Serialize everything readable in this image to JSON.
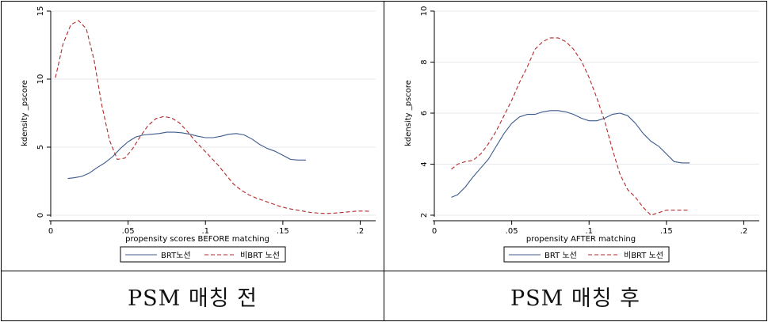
{
  "captions": [
    "PSM 매칭 전",
    "PSM 매칭 후"
  ],
  "colors": {
    "brt": "#3c5a8c",
    "nonbrt": "#b22a2a",
    "grid": "#e6e9ee",
    "plot_bg": "#ffffff",
    "outer_bg": "#ffffff"
  },
  "chart_data": [
    {
      "type": "line",
      "xlabel": "propensity scores BEFORE matching",
      "ylabel": "kdensity _pscore",
      "xlim": [
        0,
        0.21
      ],
      "ylim": [
        0,
        15
      ],
      "xticks": [
        0,
        0.05,
        0.1,
        0.15,
        0.2
      ],
      "xtick_labels": [
        "0",
        ".05",
        ".1",
        ".15",
        ".2"
      ],
      "yticks": [
        0,
        5,
        10,
        15
      ],
      "ytick_labels": [
        "0",
        "5",
        "10",
        "15"
      ],
      "grid": true,
      "legend": "bottom",
      "series": [
        {
          "name": "BRT노선",
          "style": "solid",
          "x": [
            0.011,
            0.015,
            0.02,
            0.025,
            0.03,
            0.035,
            0.04,
            0.045,
            0.05,
            0.055,
            0.06,
            0.065,
            0.07,
            0.075,
            0.08,
            0.085,
            0.09,
            0.095,
            0.1,
            0.105,
            0.11,
            0.115,
            0.12,
            0.125,
            0.13,
            0.135,
            0.14,
            0.145,
            0.15,
            0.155,
            0.16,
            0.165
          ],
          "y": [
            2.7,
            2.75,
            2.85,
            3.1,
            3.5,
            3.85,
            4.3,
            4.9,
            5.4,
            5.75,
            5.9,
            5.95,
            6.0,
            6.1,
            6.1,
            6.05,
            5.95,
            5.8,
            5.7,
            5.7,
            5.8,
            5.95,
            6.0,
            5.9,
            5.6,
            5.2,
            4.9,
            4.7,
            4.4,
            4.1,
            4.05,
            4.05
          ]
        },
        {
          "name": "비BRT 노선",
          "style": "dashed",
          "x": [
            0.003,
            0.008,
            0.013,
            0.018,
            0.023,
            0.028,
            0.033,
            0.038,
            0.043,
            0.048,
            0.053,
            0.058,
            0.063,
            0.068,
            0.073,
            0.078,
            0.083,
            0.088,
            0.093,
            0.098,
            0.103,
            0.108,
            0.113,
            0.118,
            0.123,
            0.128,
            0.133,
            0.138,
            0.143,
            0.148,
            0.153,
            0.158,
            0.163,
            0.168,
            0.173,
            0.178,
            0.183,
            0.188,
            0.193,
            0.198,
            0.203,
            0.207
          ],
          "y": [
            10.1,
            12.6,
            14.0,
            14.3,
            13.7,
            11.4,
            8.1,
            5.5,
            4.1,
            4.2,
            4.9,
            5.8,
            6.6,
            7.1,
            7.25,
            7.15,
            6.8,
            6.2,
            5.5,
            4.9,
            4.3,
            3.7,
            3.0,
            2.3,
            1.85,
            1.5,
            1.25,
            1.05,
            0.85,
            0.65,
            0.5,
            0.4,
            0.3,
            0.2,
            0.15,
            0.12,
            0.15,
            0.2,
            0.25,
            0.3,
            0.3,
            0.28
          ]
        }
      ]
    },
    {
      "type": "line",
      "xlabel": "propensity AFTER matching",
      "ylabel": "kdensity _pscore",
      "xlim": [
        0,
        0.21
      ],
      "ylim": [
        2,
        10
      ],
      "xticks": [
        0,
        0.05,
        0.1,
        0.15,
        0.2
      ],
      "xtick_labels": [
        "0",
        ".05",
        ".1",
        ".15",
        ".2"
      ],
      "yticks": [
        2,
        4,
        6,
        8,
        10
      ],
      "ytick_labels": [
        "2",
        "4",
        "6",
        "8",
        "10"
      ],
      "grid": true,
      "legend": "bottom",
      "series": [
        {
          "name": "BRT 노선",
          "style": "solid",
          "x": [
            0.011,
            0.015,
            0.02,
            0.025,
            0.03,
            0.035,
            0.04,
            0.045,
            0.05,
            0.055,
            0.06,
            0.065,
            0.07,
            0.075,
            0.08,
            0.085,
            0.09,
            0.095,
            0.1,
            0.105,
            0.11,
            0.115,
            0.12,
            0.125,
            0.13,
            0.135,
            0.14,
            0.145,
            0.15,
            0.155,
            0.16,
            0.165
          ],
          "y": [
            2.7,
            2.8,
            3.1,
            3.5,
            3.85,
            4.2,
            4.7,
            5.2,
            5.6,
            5.85,
            5.95,
            5.95,
            6.05,
            6.1,
            6.1,
            6.05,
            5.95,
            5.8,
            5.7,
            5.7,
            5.8,
            5.95,
            6.0,
            5.9,
            5.6,
            5.2,
            4.9,
            4.7,
            4.4,
            4.1,
            4.05,
            4.05
          ]
        },
        {
          "name": "비BRT 노선",
          "style": "dashed",
          "x": [
            0.011,
            0.015,
            0.02,
            0.025,
            0.03,
            0.035,
            0.04,
            0.045,
            0.05,
            0.055,
            0.06,
            0.065,
            0.07,
            0.075,
            0.08,
            0.085,
            0.09,
            0.095,
            0.1,
            0.105,
            0.11,
            0.115,
            0.12,
            0.125,
            0.13,
            0.135,
            0.14,
            0.145,
            0.15,
            0.155,
            0.16,
            0.165
          ],
          "y": [
            3.8,
            4.0,
            4.1,
            4.15,
            4.4,
            4.8,
            5.3,
            5.9,
            6.5,
            7.2,
            7.8,
            8.5,
            8.8,
            8.95,
            8.95,
            8.8,
            8.5,
            8.05,
            7.4,
            6.6,
            5.7,
            4.6,
            3.6,
            3.0,
            2.7,
            2.3,
            2.0,
            2.1,
            2.2,
            2.2,
            2.2,
            2.2
          ]
        }
      ]
    }
  ]
}
